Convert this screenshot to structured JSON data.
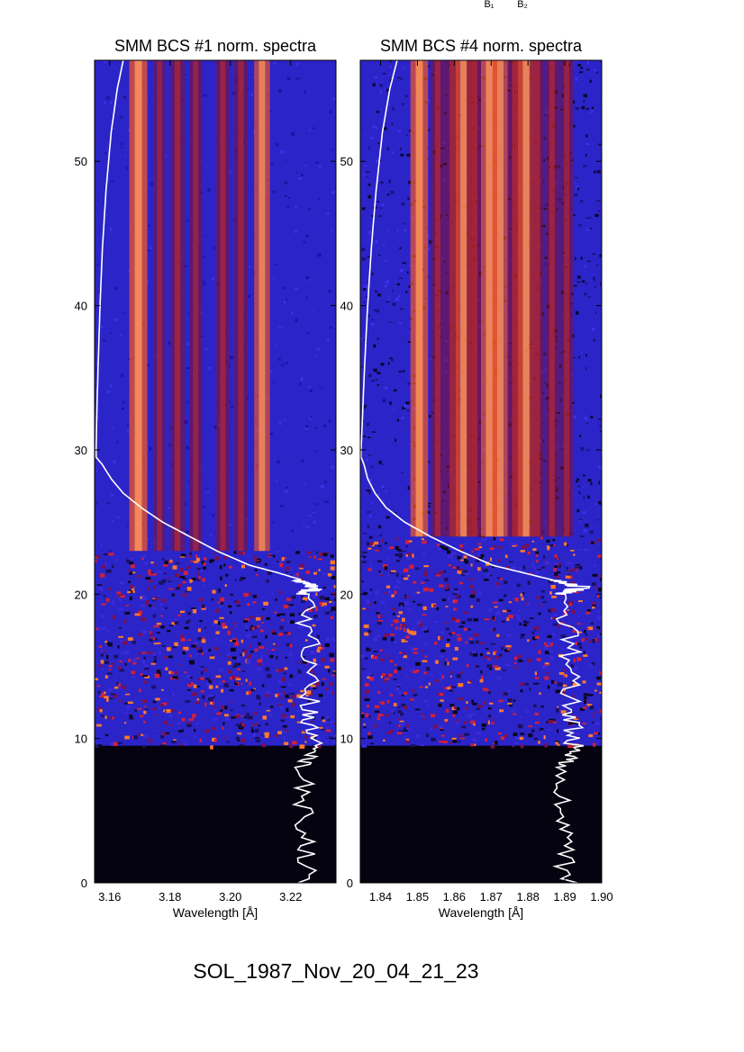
{
  "header_labels": [
    "B₁",
    "B₂"
  ],
  "event_label": "SOL_1987_Nov_20_04_21_23",
  "colors": {
    "background_blue": "#2b24c8",
    "line_bright": "#ff5a1e",
    "line_dark": "#8c1020",
    "noise_black": "#05030f",
    "curve": "#ffffff"
  },
  "chart_data": [
    {
      "type": "heatmap",
      "title": "SMM BCS #1 norm. spectra",
      "xlabel": "Wavelength [Å]",
      "ylabel": "",
      "xlim": [
        3.155,
        3.235
      ],
      "ylim": [
        0,
        57
      ],
      "x_ticks": [
        "3.16",
        "3.18",
        "3.20",
        "3.22"
      ],
      "x_tick_values": [
        3.16,
        3.18,
        3.2,
        3.22
      ],
      "y_ticks": [
        "0",
        "10",
        "20",
        "30",
        "40",
        "50"
      ],
      "y_tick_values": [
        0,
        10,
        20,
        30,
        40,
        50
      ],
      "emission_lines": [
        {
          "wavelength": 3.1695,
          "strength": 1.0
        },
        {
          "wavelength": 3.1765,
          "strength": 0.35
        },
        {
          "wavelength": 3.1825,
          "strength": 0.55
        },
        {
          "wavelength": 3.1885,
          "strength": 0.45
        },
        {
          "wavelength": 3.1975,
          "strength": 0.5
        },
        {
          "wavelength": 3.2035,
          "strength": 0.5
        },
        {
          "wavelength": 3.2105,
          "strength": 0.75
        }
      ],
      "signal_start_frame": 23,
      "noise_start_frame": 9.5,
      "lightcurve_frame": [
        0,
        4,
        8,
        9.5,
        12,
        16,
        20,
        20.5,
        21,
        21.5,
        22,
        23,
        24,
        25,
        26,
        27,
        28,
        29,
        29.5,
        30,
        31,
        33,
        36,
        40,
        44,
        48,
        52,
        55,
        57
      ],
      "lightcurve_wavelength": [
        3.2255,
        3.2245,
        3.2245,
        3.2275,
        3.2265,
        3.2265,
        3.2245,
        3.2285,
        3.2235,
        3.2155,
        3.2065,
        3.1955,
        3.1865,
        3.1775,
        3.1705,
        3.1645,
        3.1605,
        3.1575,
        3.1555,
        3.1555,
        3.1556,
        3.1558,
        3.1562,
        3.1568,
        3.1576,
        3.1588,
        3.1605,
        3.1625,
        3.1645
      ]
    },
    {
      "type": "heatmap",
      "title": "SMM BCS #4 norm. spectra",
      "xlabel": "Wavelength [Å]",
      "ylabel": "",
      "xlim": [
        1.8345,
        1.9
      ],
      "ylim": [
        0,
        57
      ],
      "x_ticks": [
        "1.84",
        "1.85",
        "1.86",
        "1.87",
        "1.88",
        "1.89",
        "1.90"
      ],
      "x_tick_values": [
        1.84,
        1.85,
        1.86,
        1.87,
        1.88,
        1.89,
        1.9
      ],
      "y_ticks": [
        "0",
        "10",
        "20",
        "30",
        "40",
        "50"
      ],
      "y_tick_values": [
        0,
        10,
        20,
        30,
        40,
        50
      ],
      "emission_lines": [
        {
          "wavelength": 1.8505,
          "strength": 0.95
        },
        {
          "wavelength": 1.8555,
          "strength": 0.55
        },
        {
          "wavelength": 1.8595,
          "strength": 0.6
        },
        {
          "wavelength": 1.8625,
          "strength": 0.75
        },
        {
          "wavelength": 1.8655,
          "strength": 0.7
        },
        {
          "wavelength": 1.8695,
          "strength": 0.85
        },
        {
          "wavelength": 1.8725,
          "strength": 0.75
        },
        {
          "wavelength": 1.8765,
          "strength": 0.7
        },
        {
          "wavelength": 1.8795,
          "strength": 0.8
        },
        {
          "wavelength": 1.8825,
          "strength": 0.6
        },
        {
          "wavelength": 1.8865,
          "strength": 0.55
        },
        {
          "wavelength": 1.8905,
          "strength": 0.45
        }
      ],
      "signal_start_frame": 24,
      "noise_start_frame": 9.5,
      "lightcurve_frame": [
        0,
        4,
        8,
        9.5,
        12,
        16,
        20,
        20.5,
        21,
        21.5,
        22,
        23,
        24,
        25,
        26,
        27,
        28,
        29,
        29.5,
        30,
        31,
        33,
        36,
        40,
        44,
        48,
        52,
        55,
        57
      ],
      "lightcurve_wavelength": [
        1.8905,
        1.8895,
        1.8895,
        1.8925,
        1.8915,
        1.8915,
        1.8895,
        1.8945,
        1.8865,
        1.8785,
        1.8705,
        1.8615,
        1.8535,
        1.8465,
        1.8415,
        1.8385,
        1.8365,
        1.8355,
        1.8347,
        1.8347,
        1.8349,
        1.8352,
        1.8357,
        1.8365,
        1.8375,
        1.8388,
        1.8405,
        1.8425,
        1.8445
      ]
    }
  ]
}
